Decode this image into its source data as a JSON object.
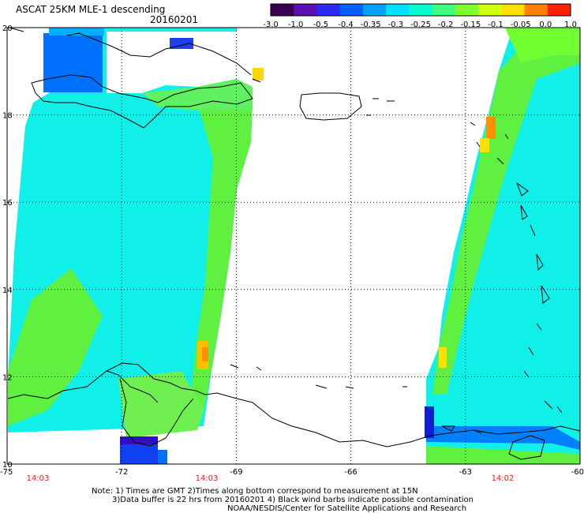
{
  "header": {
    "title": "ASCAT 25KM MLE-1 descending",
    "date": "20160201"
  },
  "colorbar": {
    "labels": [
      "-3.0",
      "-1.0",
      "-0.5",
      "-0.4",
      "-0.35",
      "-0.3",
      "-0.25",
      "-0.2",
      "-0.15",
      "-0.1",
      "-0.05",
      "0.0",
      "1.0"
    ],
    "colors": [
      "#3a0050",
      "#5a10b0",
      "#2a2af0",
      "#0060ff",
      "#00a0ff",
      "#00e0ff",
      "#00ffd0",
      "#40ff80",
      "#80ff30",
      "#d0ff10",
      "#ffe000",
      "#ff8000",
      "#ff2000"
    ]
  },
  "lat_labels": [
    "20",
    "18",
    "16",
    "14",
    "12",
    "10"
  ],
  "lon_labels": [
    "-75",
    "-72",
    "-69",
    "-66",
    "-63",
    "-60"
  ],
  "time_labels": [
    "14:03",
    "14:03",
    "14:02"
  ],
  "notes": {
    "line1": "Note: 1) Times are GMT 2)Times along bottom correspond to measurement at 15N",
    "line2": "3)Data buffer is 22 hrs from 20160201 4) Black wind barbs indicate possible contamination",
    "line3": "NOAA/NESDIS/Center for Satellite Applications and Research"
  }
}
